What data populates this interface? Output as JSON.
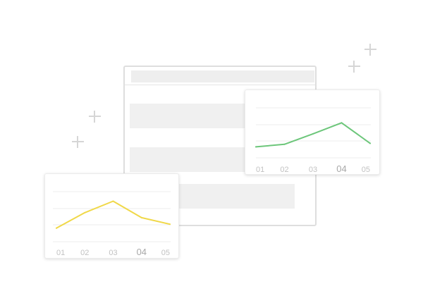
{
  "colors": {
    "background": "#ffffff",
    "window_border": "#dedede",
    "skeleton_fill": "#f0f0f0",
    "sparkle": "#d6d6d6",
    "gridline": "#ececec",
    "tick_text": "#c2c2c2"
  },
  "decorations": {
    "sparkle_icons": [
      "plus-sparkle-icon",
      "plus-sparkle-icon",
      "plus-sparkle-icon",
      "plus-sparkle-icon"
    ]
  },
  "chart_data": [
    {
      "type": "line",
      "categories": [
        "01",
        "02",
        "03",
        "04",
        "05"
      ],
      "emphasized_category": "04",
      "series": [
        {
          "values": [
            22,
            27,
            48,
            70,
            29
          ],
          "color": "#6cc67a"
        }
      ],
      "ylim": [
        0,
        100
      ],
      "grid": true,
      "axes_visible": false
    },
    {
      "type": "line",
      "categories": [
        "01",
        "02",
        "03",
        "04",
        "05"
      ],
      "emphasized_category": "04",
      "series": [
        {
          "values": [
            27,
            58,
            81,
            48,
            35
          ],
          "color": "#f0d848"
        }
      ],
      "ylim": [
        0,
        100
      ],
      "grid": true,
      "axes_visible": false
    }
  ]
}
